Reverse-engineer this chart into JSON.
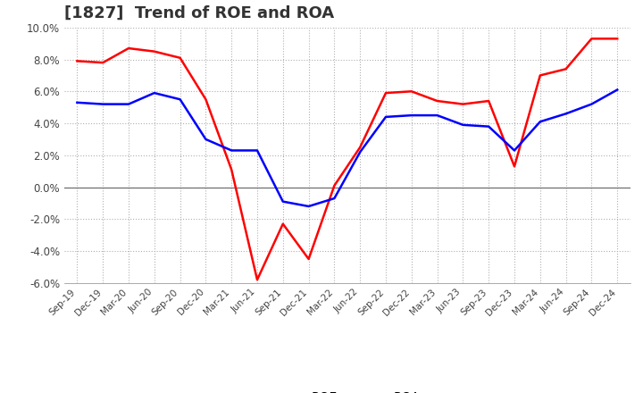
{
  "title": "[1827]  Trend of ROE and ROA",
  "x_labels": [
    "Sep-19",
    "Dec-19",
    "Mar-20",
    "Jun-20",
    "Sep-20",
    "Dec-20",
    "Mar-21",
    "Jun-21",
    "Sep-21",
    "Dec-21",
    "Mar-22",
    "Jun-22",
    "Sep-22",
    "Dec-22",
    "Mar-23",
    "Jun-23",
    "Sep-23",
    "Dec-23",
    "Mar-24",
    "Jun-24",
    "Sep-24",
    "Dec-24"
  ],
  "roe": [
    7.9,
    7.8,
    8.7,
    8.5,
    8.1,
    5.5,
    1.1,
    -5.8,
    -2.3,
    -4.5,
    0.1,
    2.5,
    5.9,
    6.0,
    5.4,
    5.2,
    5.4,
    1.3,
    7.0,
    7.4,
    9.3,
    9.3
  ],
  "roa": [
    5.3,
    5.2,
    5.2,
    5.9,
    5.5,
    3.0,
    2.3,
    2.3,
    -0.9,
    -1.2,
    -0.7,
    2.2,
    4.4,
    4.5,
    4.5,
    3.9,
    3.8,
    2.3,
    4.1,
    4.6,
    5.2,
    6.1
  ],
  "roe_color": "#ff0000",
  "roa_color": "#0000ff",
  "ylim": [
    -6.0,
    10.0
  ],
  "yticks": [
    -6.0,
    -4.0,
    -2.0,
    0.0,
    2.0,
    4.0,
    6.0,
    8.0,
    10.0
  ],
  "grid_color": "#b0b0b0",
  "background_color": "#ffffff",
  "title_color": "#333333",
  "title_fontsize": 13,
  "line_width": 1.8
}
